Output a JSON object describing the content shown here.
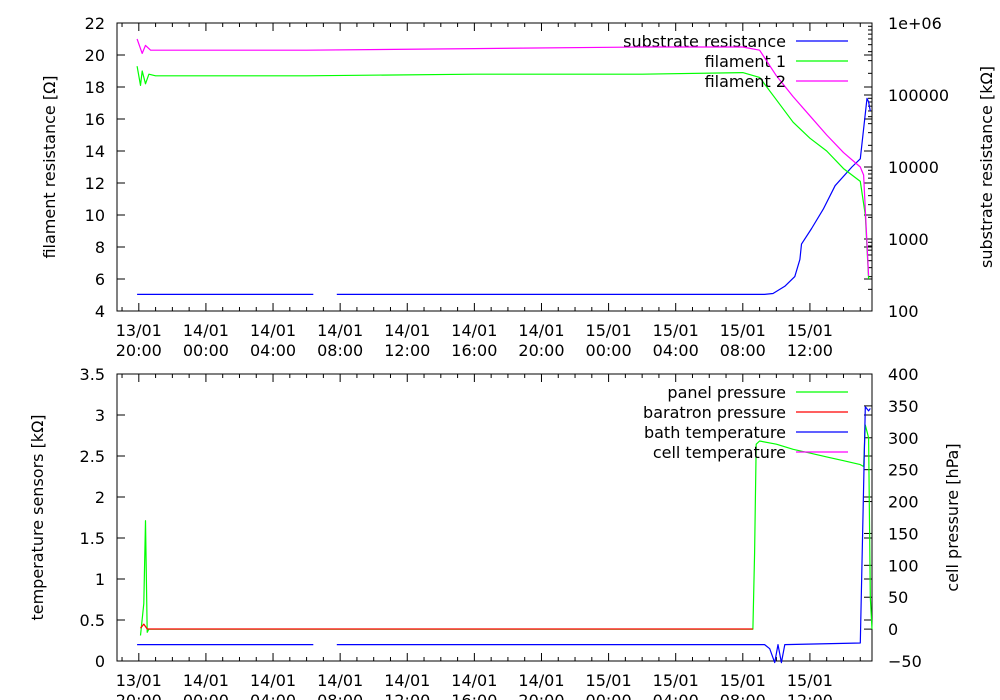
{
  "time_ticks": [
    {
      "date": "13/01",
      "time": "20:00",
      "h": 20
    },
    {
      "date": "14/01",
      "time": "00:00",
      "h": 24
    },
    {
      "date": "14/01",
      "time": "04:00",
      "h": 28
    },
    {
      "date": "14/01",
      "time": "08:00",
      "h": 32
    },
    {
      "date": "14/01",
      "time": "12:00",
      "h": 36
    },
    {
      "date": "14/01",
      "time": "16:00",
      "h": 40
    },
    {
      "date": "14/01",
      "time": "20:00",
      "h": 44
    },
    {
      "date": "15/01",
      "time": "00:00",
      "h": 48
    },
    {
      "date": "15/01",
      "time": "04:00",
      "h": 52
    },
    {
      "date": "15/01",
      "time": "08:00",
      "h": 56
    },
    {
      "date": "15/01",
      "time": "12:00",
      "h": 60
    }
  ],
  "chart_data": [
    {
      "type": "line",
      "ylabel": "filament resistance [Ω]",
      "y2label": "substrate resistance [kΩ]",
      "ylim": [
        4,
        22
      ],
      "yticks": [
        4,
        6,
        8,
        10,
        12,
        14,
        16,
        18,
        20,
        22
      ],
      "y2lim": [
        100,
        1000000
      ],
      "y2_scale": "log",
      "y2ticks": [
        {
          "v": 100,
          "label": "100"
        },
        {
          "v": 1000,
          "label": "1000"
        },
        {
          "v": 10000,
          "label": "10000"
        },
        {
          "v": 100000,
          "label": "100000"
        },
        {
          "v": 1000000,
          "label": "1e+06"
        }
      ],
      "legend_position": "top-right",
      "series": [
        {
          "name": "substrate resistance",
          "color": "#0000ff",
          "axis": "y2",
          "points": [
            [
              19.9,
              170
            ],
            [
              30.4,
              170
            ],
            null,
            [
              31.8,
              170
            ],
            [
              57.3,
              170
            ],
            [
              57.8,
              175
            ],
            [
              58.5,
              220
            ],
            [
              59.1,
              300
            ],
            [
              59.4,
              520
            ],
            [
              59.5,
              850
            ],
            [
              60.1,
              1400
            ],
            [
              60.8,
              2600
            ],
            [
              61.5,
              5500
            ],
            [
              62.5,
              10000
            ],
            [
              63.0,
              13000
            ],
            [
              63.4,
              90000
            ],
            [
              63.5,
              80000
            ],
            [
              63.6,
              60000
            ]
          ]
        },
        {
          "name": "filament 1",
          "color": "#00ff00",
          "axis": "y1",
          "points": [
            [
              19.9,
              19.3
            ],
            [
              20.1,
              18.1
            ],
            [
              20.2,
              19.0
            ],
            [
              20.4,
              18.2
            ],
            [
              20.6,
              18.8
            ],
            [
              21.0,
              18.7
            ],
            [
              30,
              18.7
            ],
            [
              40,
              18.8
            ],
            [
              50,
              18.8
            ],
            [
              56,
              18.9
            ],
            [
              57,
              18.6
            ],
            [
              58,
              17.2
            ],
            [
              59,
              15.8
            ],
            [
              60,
              14.8
            ],
            [
              61,
              14.0
            ],
            [
              62,
              12.9
            ],
            [
              63,
              12.1
            ],
            [
              63.3,
              10.0
            ],
            [
              63.5,
              6.0
            ]
          ]
        },
        {
          "name": "filament 2",
          "color": "#ff00ff",
          "axis": "y1",
          "points": [
            [
              19.9,
              21.0
            ],
            [
              20.2,
              20.1
            ],
            [
              20.4,
              20.6
            ],
            [
              20.7,
              20.3
            ],
            [
              21.0,
              20.3
            ],
            [
              30,
              20.3
            ],
            [
              40,
              20.4
            ],
            [
              50,
              20.5
            ],
            [
              56,
              20.5
            ],
            [
              57,
              20.3
            ],
            [
              58,
              18.7
            ],
            [
              59,
              17.4
            ],
            [
              60,
              16.2
            ],
            [
              61,
              15.0
            ],
            [
              62,
              13.9
            ],
            [
              63,
              13.0
            ],
            [
              63.2,
              12.5
            ],
            [
              63.5,
              6.2
            ]
          ]
        }
      ]
    },
    {
      "type": "line",
      "ylabel": "temperature sensors [kΩ]",
      "y2label": "cell pressure [hPa]",
      "ylim": [
        0,
        3.5
      ],
      "yticks": [
        0,
        0.5,
        1,
        1.5,
        2,
        2.5,
        3,
        3.5
      ],
      "y2lim": [
        -50,
        400
      ],
      "y2ticks": [
        -50,
        0,
        50,
        100,
        150,
        200,
        250,
        300,
        350,
        400
      ],
      "legend_position": "top-right",
      "series": [
        {
          "name": "panel pressure",
          "color": "#00ff00",
          "axis": "y2",
          "points": [
            [
              20.1,
              -10
            ],
            [
              20.3,
              40
            ],
            [
              20.4,
              170
            ],
            [
              20.5,
              -5
            ],
            [
              20.6,
              0
            ],
            [
              20.8,
              0
            ],
            [
              56.6,
              0
            ],
            [
              56.7,
              120
            ],
            [
              56.8,
              290
            ],
            [
              57.0,
              295
            ],
            [
              58,
              290
            ],
            [
              59,
              282
            ],
            [
              60,
              276
            ],
            [
              61,
              270
            ],
            [
              62,
              264
            ],
            [
              63,
              258
            ],
            [
              63.2,
              255
            ],
            [
              63.3,
              320
            ],
            [
              63.5,
              300
            ],
            [
              63.6,
              50
            ],
            [
              63.7,
              0
            ]
          ]
        },
        {
          "name": "baratron pressure",
          "color": "#ff0000",
          "axis": "y1",
          "points": [
            [
              20.1,
              0.4
            ],
            [
              20.3,
              0.45
            ],
            [
              20.5,
              0.39
            ],
            [
              30,
              0.39
            ],
            [
              45,
              0.39
            ],
            [
              56.6,
              0.39
            ]
          ]
        },
        {
          "name": "bath temperature",
          "color": "#0000ff",
          "axis": "y1",
          "points": [
            [
              19.9,
              0.2
            ],
            [
              30.4,
              0.2
            ],
            null,
            [
              31.8,
              0.2
            ],
            [
              57.3,
              0.2
            ],
            [
              57.6,
              0.15
            ],
            [
              57.9,
              -0.02
            ],
            [
              58.1,
              0.2
            ],
            [
              58.3,
              -0.02
            ],
            [
              58.5,
              0.2
            ],
            [
              63.0,
              0.22
            ],
            [
              63.3,
              3.1
            ],
            [
              63.5,
              3.05
            ],
            [
              63.6,
              3.08
            ]
          ]
        },
        {
          "name": "cell temperature",
          "color": "#ff00ff",
          "axis": "y2",
          "points": []
        }
      ]
    }
  ]
}
